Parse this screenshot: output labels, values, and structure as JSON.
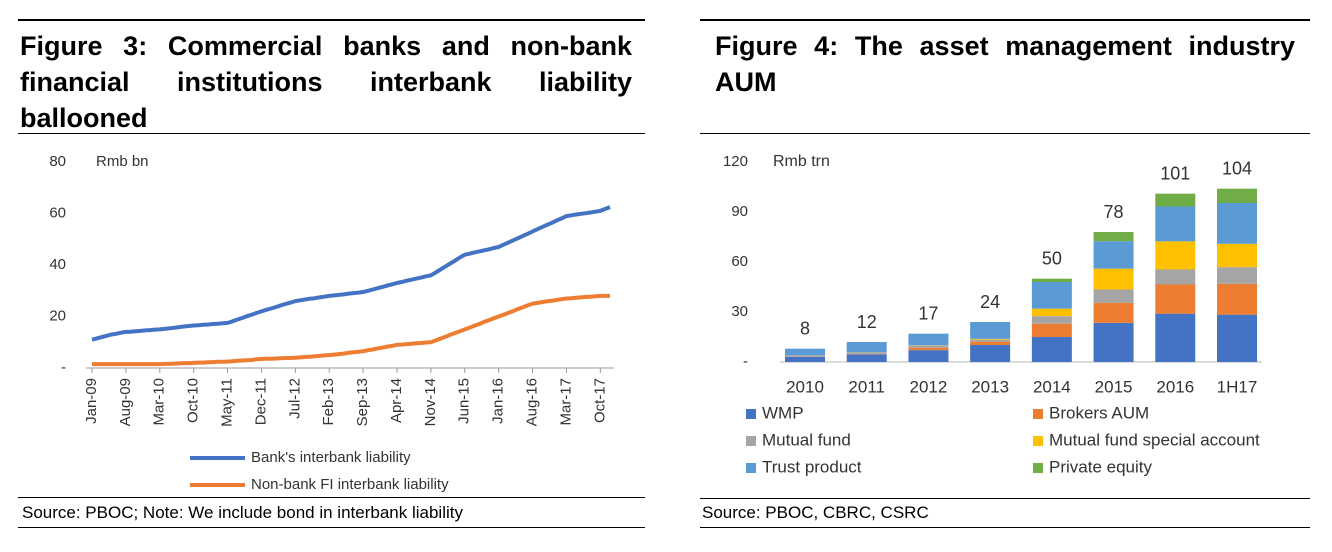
{
  "figures": [
    {
      "title": "Figure 3: Commercial banks and non-bank financial institutions interbank liability ballooned",
      "source": "Source: PBOC; Note: We include bond in interbank liability"
    },
    {
      "title": "Figure 4: The asset management industry AUM",
      "source": "Source: PBOC, CBRC, CSRC"
    }
  ],
  "chart_data": [
    {
      "type": "line",
      "ylabel": "Rmb bn",
      "categories": [
        "Jan-09",
        null,
        null,
        null,
        null,
        null,
        null,
        "Aug-09",
        null,
        null,
        null,
        null,
        null,
        null,
        "Mar-10",
        null,
        null,
        null,
        null,
        null,
        null,
        "Oct-10",
        null,
        null,
        null,
        null,
        null,
        null,
        "May-11",
        null,
        null,
        null,
        null,
        null,
        null,
        "Dec-11",
        null,
        null,
        null,
        null,
        null,
        null,
        "Jul-12",
        null,
        null,
        null,
        null,
        null,
        null,
        "Feb-13",
        null,
        null,
        null,
        null,
        null,
        null,
        "Sep-13",
        null,
        null,
        null,
        null,
        null,
        null,
        "Apr-14",
        null,
        null,
        null,
        null,
        null,
        null,
        "Nov-14",
        null,
        null,
        null,
        null,
        null,
        null,
        "Jun-15",
        null,
        null,
        null,
        null,
        null,
        null,
        "Jan-16",
        null,
        null,
        null,
        null,
        null,
        null,
        "Aug-16",
        null,
        null,
        null,
        null,
        null,
        null,
        "Mar-17",
        null,
        null,
        null,
        null,
        null,
        null,
        "Oct-17",
        null,
        null
      ],
      "series": [
        {
          "name": "Bank's interbank liability",
          "color": "#4472c4",
          "values": [
            11,
            11.5,
            12,
            12.5,
            13,
            13.3,
            13.7,
            14,
            14.1,
            14.3,
            14.4,
            14.6,
            14.7,
            14.9,
            15,
            15.2,
            15.4,
            15.6,
            15.9,
            16.1,
            16.3,
            16.5,
            16.6,
            16.8,
            16.9,
            17.1,
            17.2,
            17.4,
            17.5,
            18.1,
            18.8,
            19.4,
            20.1,
            20.7,
            21.4,
            22,
            22.6,
            23.1,
            23.7,
            24.3,
            24.9,
            25.4,
            26,
            26.3,
            26.6,
            26.9,
            27.1,
            27.4,
            27.7,
            28,
            28.2,
            28.4,
            28.6,
            28.9,
            29.1,
            29.3,
            29.5,
            30,
            30.5,
            31,
            31.5,
            32,
            32.5,
            33,
            33.4,
            33.9,
            34.3,
            34.7,
            35.1,
            35.6,
            36,
            37.1,
            38.3,
            39.4,
            40.6,
            41.7,
            42.9,
            44,
            44.4,
            44.9,
            45.3,
            45.7,
            46.1,
            46.6,
            47,
            47.9,
            48.7,
            49.6,
            50.4,
            51.3,
            52.1,
            53,
            53.9,
            54.7,
            55.6,
            56.4,
            57.3,
            58.1,
            59,
            59.3,
            59.6,
            59.9,
            60.1,
            60.4,
            60.7,
            61,
            61.8,
            62.5
          ]
        },
        {
          "name": "Non-bank FI interbank liability",
          "color": "#ed7d31",
          "values": [
            1.5,
            1.5,
            1.5,
            1.5,
            1.5,
            1.5,
            1.5,
            1.5,
            1.5,
            1.5,
            1.5,
            1.5,
            1.5,
            1.5,
            1.5,
            1.6,
            1.6,
            1.7,
            1.8,
            1.9,
            1.9,
            2,
            2.1,
            2.1,
            2.2,
            2.3,
            2.4,
            2.4,
            2.5,
            2.6,
            2.8,
            2.9,
            3,
            3.1,
            3.4,
            3.5,
            3.6,
            3.6,
            3.7,
            3.8,
            3.9,
            3.9,
            4,
            4.1,
            4.3,
            4.4,
            4.6,
            4.7,
            4.9,
            5,
            5.2,
            5.4,
            5.6,
            5.9,
            6.1,
            6.3,
            6.5,
            6.9,
            7.2,
            7.6,
            7.9,
            8.3,
            8.6,
            9,
            9.1,
            9.3,
            9.4,
            9.6,
            9.7,
            9.9,
            10,
            10.7,
            11.4,
            12.1,
            12.9,
            13.6,
            14.3,
            15,
            15.7,
            16.4,
            17.1,
            17.9,
            18.6,
            19.3,
            20,
            20.7,
            21.4,
            22.1,
            22.9,
            23.6,
            24.3,
            25,
            25.3,
            25.6,
            25.9,
            26.1,
            26.4,
            26.7,
            27,
            27.1,
            27.3,
            27.4,
            27.6,
            27.7,
            27.9,
            28,
            28,
            28
          ]
        }
      ],
      "ylim": [
        0,
        80
      ],
      "yticks": [
        {
          "value": 0,
          "label": "-"
        },
        20,
        40,
        60,
        80
      ]
    },
    {
      "type": "stacked_bar",
      "ylabel": "Rmb trn",
      "categories": [
        "2010",
        "2011",
        "2012",
        "2013",
        "2014",
        "2015",
        "2016",
        "1H17"
      ],
      "totals": [
        8,
        12,
        17,
        24,
        50,
        78,
        101,
        104
      ],
      "series": [
        {
          "name": "WMP",
          "color": "#4472c4",
          "values": [
            3,
            4.6,
            7.1,
            10.2,
            15,
            23.5,
            29,
            28.4
          ]
        },
        {
          "name": "Brokers AUM",
          "color": "#ed7d31",
          "values": [
            0.2,
            0.3,
            1.5,
            2,
            8,
            12,
            17.5,
            18.5
          ]
        },
        {
          "name": "Mutual fund",
          "color": "#a5a5a5",
          "values": [
            0.8,
            1,
            1.2,
            1.2,
            4.5,
            8,
            9,
            10
          ]
        },
        {
          "name": "Mutual fund special account",
          "color": "#ffc000",
          "values": [
            0,
            0,
            0.2,
            0.5,
            4.5,
            12.5,
            16.9,
            14
          ]
        },
        {
          "name": "Trust product",
          "color": "#5b9bd5",
          "values": [
            4,
            6.1,
            7,
            10.1,
            16,
            16.5,
            20.9,
            24.5
          ]
        },
        {
          "name": "Private equity",
          "color": "#70ad47",
          "values": [
            0,
            0,
            0,
            0,
            2,
            5.5,
            7.7,
            8.6
          ]
        }
      ],
      "ylim": [
        0,
        120
      ],
      "yticks": [
        {
          "value": 0,
          "label": "-"
        },
        30,
        60,
        90,
        120
      ]
    }
  ]
}
